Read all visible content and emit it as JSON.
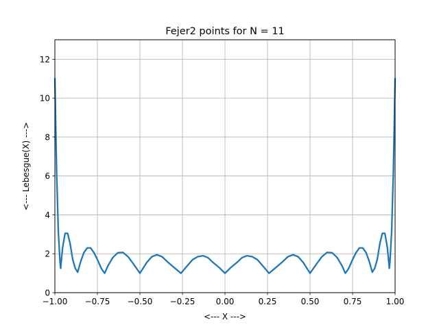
{
  "chart_data": {
    "type": "line",
    "title": "Fejer2 points for N = 11",
    "xlabel": "<--- X --->",
    "ylabel": "<--- Lebesgue(X) --->",
    "xlim": [
      -1.0,
      1.0
    ],
    "ylim": [
      0,
      13
    ],
    "xticks": [
      -1.0,
      -0.75,
      -0.5,
      -0.25,
      0.0,
      0.25,
      0.5,
      0.75,
      1.0
    ],
    "xtick_labels": [
      "−1.00",
      "−0.75",
      "−0.50",
      "−0.25",
      "0.00",
      "0.25",
      "0.50",
      "0.75",
      "1.00"
    ],
    "yticks": [
      0,
      2,
      4,
      6,
      8,
      10,
      12
    ],
    "ytick_labels": [
      "0",
      "2",
      "4",
      "6",
      "8",
      "10",
      "12"
    ],
    "grid": true,
    "line_color": "#1f77b4",
    "nodes": [
      -0.966,
      -0.866,
      -0.707,
      -0.5,
      -0.259,
      0.0,
      0.259,
      0.5,
      0.707,
      0.866,
      0.966
    ],
    "series": [
      {
        "x": [
          -1.0,
          -0.99,
          -0.98,
          -0.97,
          -0.966,
          -0.955,
          -0.94,
          -0.925,
          -0.91,
          -0.895,
          -0.88,
          -0.866,
          -0.85,
          -0.83,
          -0.81,
          -0.79,
          -0.77,
          -0.75,
          -0.73,
          -0.72,
          -0.707,
          -0.69,
          -0.66,
          -0.63,
          -0.6,
          -0.57,
          -0.54,
          -0.5,
          -0.46,
          -0.43,
          -0.4,
          -0.37,
          -0.34,
          -0.3,
          -0.259,
          -0.22,
          -0.19,
          -0.16,
          -0.13,
          -0.1,
          -0.07,
          -0.035,
          0.0,
          0.035,
          0.07,
          0.1,
          0.13,
          0.16,
          0.19,
          0.22,
          0.259,
          0.3,
          0.34,
          0.37,
          0.4,
          0.43,
          0.46,
          0.5,
          0.54,
          0.57,
          0.6,
          0.63,
          0.66,
          0.69,
          0.707,
          0.72,
          0.73,
          0.75,
          0.77,
          0.79,
          0.81,
          0.83,
          0.85,
          0.866,
          0.88,
          0.895,
          0.91,
          0.925,
          0.94,
          0.955,
          0.966,
          0.97,
          0.98,
          0.99,
          1.0
        ],
        "y": [
          11.0,
          6.3,
          3.2,
          1.6,
          1.25,
          2.3,
          3.05,
          3.05,
          2.5,
          1.7,
          1.25,
          1.05,
          1.55,
          2.05,
          2.3,
          2.3,
          2.05,
          1.7,
          1.3,
          1.15,
          1.0,
          1.35,
          1.8,
          2.05,
          2.07,
          1.85,
          1.5,
          1.0,
          1.55,
          1.85,
          1.95,
          1.85,
          1.6,
          1.3,
          1.0,
          1.4,
          1.7,
          1.85,
          1.9,
          1.8,
          1.55,
          1.3,
          1.0,
          1.3,
          1.55,
          1.8,
          1.9,
          1.85,
          1.7,
          1.4,
          1.0,
          1.3,
          1.6,
          1.85,
          1.95,
          1.85,
          1.55,
          1.0,
          1.5,
          1.85,
          2.07,
          2.05,
          1.8,
          1.35,
          1.0,
          1.15,
          1.3,
          1.7,
          2.05,
          2.3,
          2.3,
          2.05,
          1.55,
          1.05,
          1.25,
          1.7,
          2.5,
          3.05,
          3.05,
          2.3,
          1.25,
          1.6,
          3.2,
          6.3,
          11.0
        ]
      }
    ]
  }
}
